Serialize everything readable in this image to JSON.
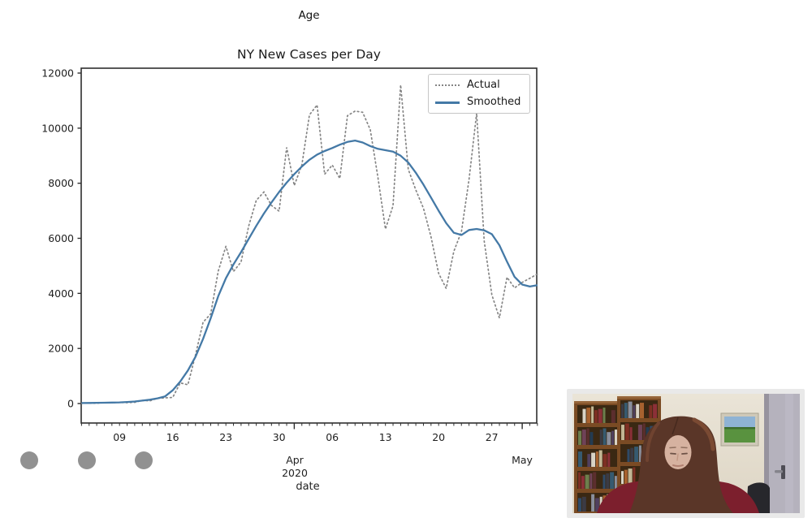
{
  "page": {
    "background": "#ffffff"
  },
  "header": {
    "age_label": "Age"
  },
  "chart": {
    "title": "NY New Cases per Day",
    "legend": {
      "actual_label": "Actual",
      "smoothed_label": "Smoothed"
    },
    "x_axis": {
      "month_label": "Apr",
      "year_label": "2020",
      "end_month_label": "May",
      "axis_label": "date"
    },
    "colors": {
      "actual": "#858585",
      "smoothed": "#4479a6",
      "axis": "#2e2e2e",
      "text": "#1f1f1f"
    }
  },
  "chart_data": {
    "type": "line",
    "title": "NY New Cases per Day",
    "xlabel": "date",
    "ylabel": "",
    "ylim": [
      -580,
      12180
    ],
    "yticks": [
      0,
      2000,
      4000,
      6000,
      8000,
      10000,
      12000
    ],
    "xtick_labels": [
      "09",
      "16",
      "23",
      "30",
      "06",
      "13",
      "20",
      "27"
    ],
    "xtick_day_indices": [
      5,
      12,
      19,
      26,
      33,
      40,
      47,
      54
    ],
    "major_tick_day_indices": [
      28,
      58
    ],
    "grid": false,
    "legend_position": "upper right",
    "dates": [
      "2020-03-04",
      "2020-03-05",
      "2020-03-06",
      "2020-03-07",
      "2020-03-08",
      "2020-03-09",
      "2020-03-10",
      "2020-03-11",
      "2020-03-12",
      "2020-03-13",
      "2020-03-14",
      "2020-03-15",
      "2020-03-16",
      "2020-03-17",
      "2020-03-18",
      "2020-03-19",
      "2020-03-20",
      "2020-03-21",
      "2020-03-22",
      "2020-03-23",
      "2020-03-24",
      "2020-03-25",
      "2020-03-26",
      "2020-03-27",
      "2020-03-28",
      "2020-03-29",
      "2020-03-30",
      "2020-03-31",
      "2020-04-01",
      "2020-04-02",
      "2020-04-03",
      "2020-04-04",
      "2020-04-05",
      "2020-04-06",
      "2020-04-07",
      "2020-04-08",
      "2020-04-09",
      "2020-04-10",
      "2020-04-11",
      "2020-04-12",
      "2020-04-13",
      "2020-04-14",
      "2020-04-15",
      "2020-04-16",
      "2020-04-17",
      "2020-04-18",
      "2020-04-19",
      "2020-04-20",
      "2020-04-21",
      "2020-04-22",
      "2020-04-23",
      "2020-04-24",
      "2020-04-25",
      "2020-04-26",
      "2020-04-27",
      "2020-04-28",
      "2020-04-29",
      "2020-04-30",
      "2020-05-01",
      "2020-05-02",
      "2020-05-03"
    ],
    "series": [
      {
        "name": "Actual",
        "style": "dotted",
        "color": "#858585",
        "values": [
          5,
          11,
          11,
          32,
          29,
          37,
          31,
          43,
          112,
          96,
          189,
          205,
          221,
          749,
          682,
          1770,
          2950,
          3254,
          4812,
          5707,
          4790,
          5146,
          6447,
          7377,
          7681,
          7195,
          6984,
          9298,
          7917,
          8669,
          10482,
          10841,
          8327,
          8658,
          8174,
          10453,
          10621,
          10575,
          9946,
          8236,
          6337,
          7177,
          11571,
          8505,
          7753,
          7090,
          6054,
          4726,
          4178,
          5526,
          6244,
          8130,
          10553,
          5902,
          3951,
          3110,
          4585,
          4200,
          4400,
          4550,
          4700
        ]
      },
      {
        "name": "Smoothed",
        "style": "solid",
        "color": "#4479a6",
        "values": [
          18,
          22,
          26,
          30,
          35,
          42,
          55,
          75,
          105,
          140,
          190,
          260,
          480,
          800,
          1200,
          1700,
          2350,
          3100,
          3900,
          4550,
          5050,
          5500,
          5980,
          6450,
          6900,
          7300,
          7680,
          8020,
          8330,
          8610,
          8850,
          9040,
          9170,
          9280,
          9400,
          9500,
          9550,
          9480,
          9350,
          9250,
          9200,
          9150,
          9000,
          8750,
          8380,
          7950,
          7480,
          7000,
          6550,
          6200,
          6120,
          6300,
          6340,
          6290,
          6150,
          5750,
          5150,
          4600,
          4320,
          4250,
          4300
        ]
      }
    ]
  },
  "page_dots": {
    "count": 3,
    "color": "#919191"
  },
  "video_panel": {
    "frame_color": "#e9e9e9"
  }
}
